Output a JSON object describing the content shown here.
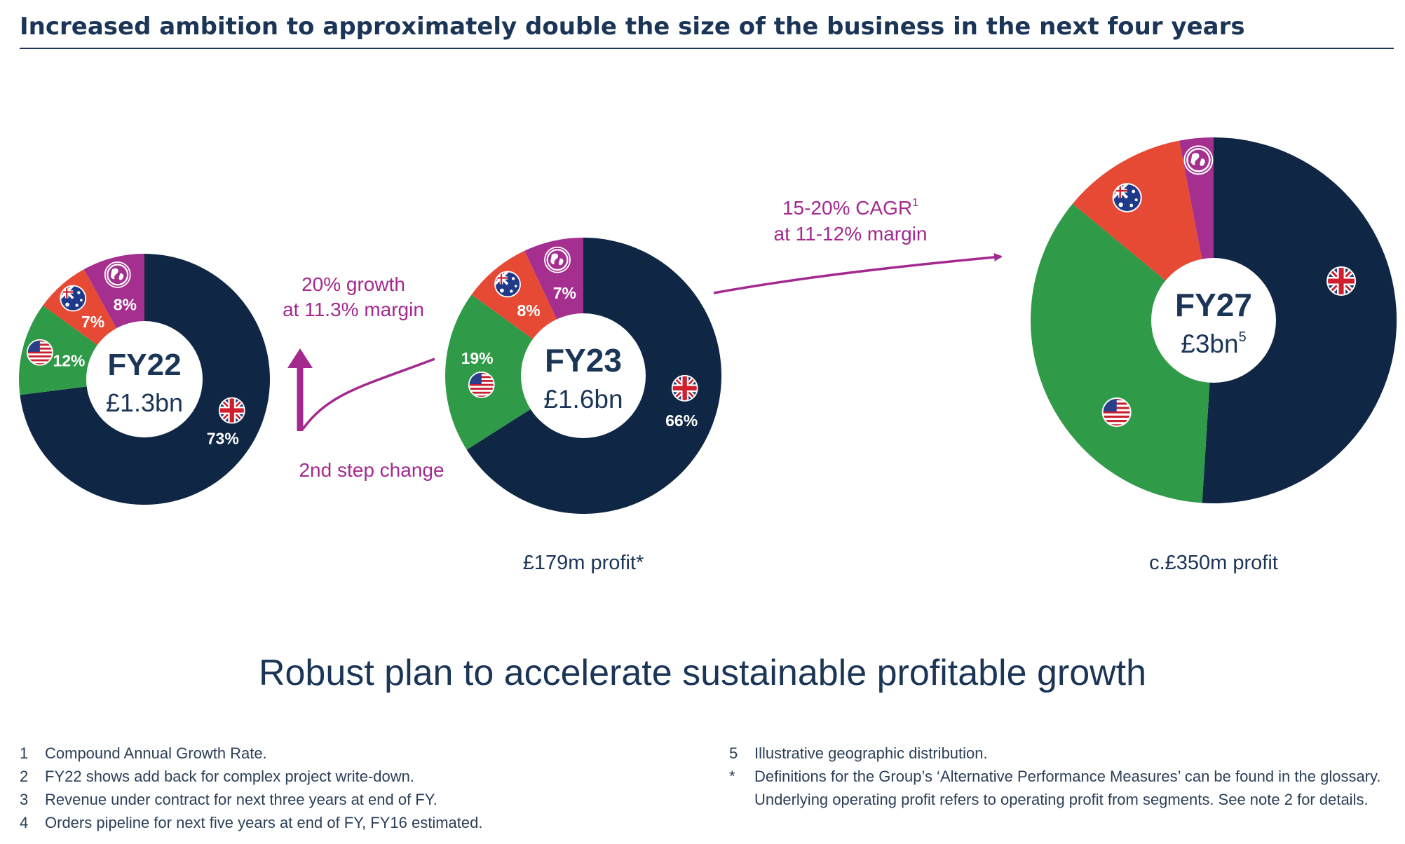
{
  "header": {
    "title": "Increased ambition to approximately double the size of the business in the next four years"
  },
  "colors": {
    "uk": "#0f2744",
    "us": "#2f9a47",
    "australia": "#e64a35",
    "rest_of_world": "#a42f8f",
    "accent": "#a3298e",
    "heading": "#1b3557",
    "center": "#ffffff"
  },
  "chart_data": [
    {
      "type": "pie",
      "title": "FY22",
      "subtitle": "£1.3bn",
      "categories": [
        "UK",
        "US",
        "Australia",
        "Rest of world"
      ],
      "icons": [
        "uk-flag-icon",
        "us-flag-icon",
        "australia-flag-icon",
        "globe-icon"
      ],
      "values": [
        73,
        12,
        7,
        8
      ],
      "labels": [
        "73%",
        "12%",
        "7%",
        "8%"
      ],
      "caption": ""
    },
    {
      "type": "pie",
      "title": "FY23",
      "subtitle": "£1.6bn",
      "categories": [
        "UK",
        "US",
        "Australia",
        "Rest of world"
      ],
      "icons": [
        "uk-flag-icon",
        "us-flag-icon",
        "australia-flag-icon",
        "globe-icon"
      ],
      "values": [
        66,
        19,
        8,
        7
      ],
      "labels": [
        "66%",
        "19%",
        "8%",
        "7%"
      ],
      "caption": "£179m profit*"
    },
    {
      "type": "pie",
      "title": "FY27",
      "subtitle": "£3bn",
      "subtitle_sup": "5",
      "categories": [
        "UK",
        "US",
        "Australia",
        "Rest of world"
      ],
      "icons": [
        "uk-flag-icon",
        "us-flag-icon",
        "australia-flag-icon",
        "globe-icon"
      ],
      "values": [
        51,
        35,
        11,
        3
      ],
      "labels": [
        "",
        "",
        "",
        ""
      ],
      "caption": "c.£350m profit"
    }
  ],
  "annotations": {
    "growth_line1": "20% growth",
    "growth_line2": "at 11.3% margin",
    "step_change": "2nd step change",
    "cagr_line1": "15-20% CAGR",
    "cagr_sup": "1",
    "cagr_line2": "at 11-12% margin"
  },
  "footer": {
    "headline": "Robust plan to accelerate sustainable profitable growth"
  },
  "notes_left": [
    {
      "id": "1",
      "text": "Compound Annual Growth Rate."
    },
    {
      "id": "2",
      "text": "FY22 shows add back for complex project write-down."
    },
    {
      "id": "3",
      "text": "Revenue under contract for next three years at end of FY."
    },
    {
      "id": "4",
      "text": "Orders pipeline for next five years at end of FY, FY16 estimated."
    }
  ],
  "notes_right": [
    {
      "id": "5",
      "text": "Illustrative geographic distribution."
    },
    {
      "id": "*",
      "text": "Definitions for the Group’s ‘Alternative Performance Measures’ can be found in the glossary. Underlying operating profit refers to operating profit from segments. See note 2 for details."
    }
  ]
}
